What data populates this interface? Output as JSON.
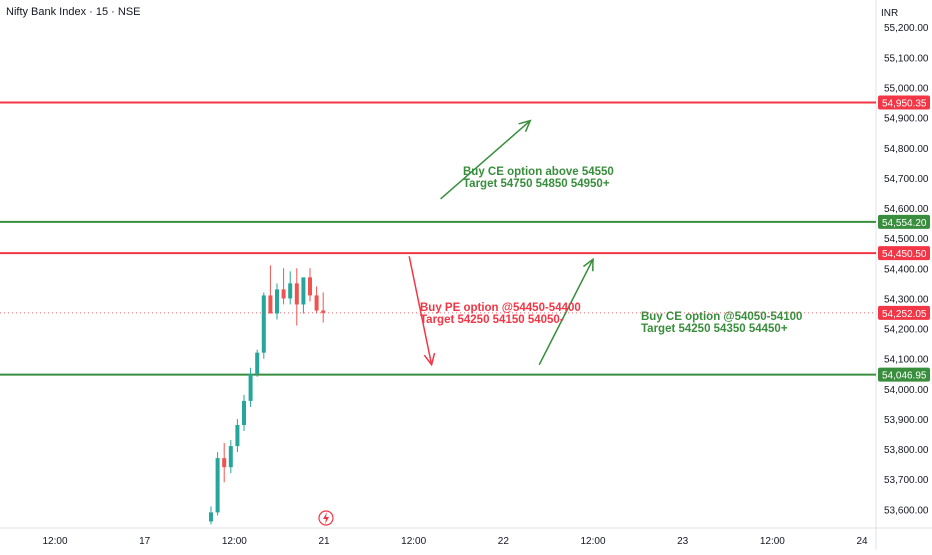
{
  "header": {
    "title": "Nifty Bank Index · 15 · NSE",
    "currency": "INR"
  },
  "chart_data": {
    "type": "candlestick",
    "ylim": [
      53550,
      55250
    ],
    "y_ticks": [
      53600,
      53700,
      53800,
      53900,
      54000,
      54100,
      54200,
      54300,
      54400,
      54500,
      54600,
      54700,
      54800,
      54900,
      55000,
      55100,
      55200
    ],
    "y_tick_labels": [
      "53,600.00",
      "53,700.00",
      "53,800.00",
      "53,900.00",
      "54,000.00",
      "54,100.00",
      "54,200.00",
      "54,300.00",
      "54,400.00",
      "54,500.00",
      "54,600.00",
      "54,700.00",
      "54,800.00",
      "54,900.00",
      "55,000.00",
      "55,100.00",
      "55,200.00"
    ],
    "x_ticks": [
      {
        "label": "12:00",
        "t": 0
      },
      {
        "label": "17",
        "t": 1
      },
      {
        "label": "12:00",
        "t": 2
      },
      {
        "label": "21",
        "t": 3
      },
      {
        "label": "12:00",
        "t": 4
      },
      {
        "label": "22",
        "t": 5
      },
      {
        "label": "12:00",
        "t": 6
      },
      {
        "label": "23",
        "t": 7
      },
      {
        "label": "12:00",
        "t": 8
      },
      {
        "label": "24",
        "t": 9
      }
    ],
    "candles": [
      {
        "o": 53560,
        "h": 53610,
        "l": 53550,
        "c": 53590
      },
      {
        "o": 53590,
        "h": 53790,
        "l": 53580,
        "c": 53770
      },
      {
        "o": 53770,
        "h": 53820,
        "l": 53690,
        "c": 53740
      },
      {
        "o": 53740,
        "h": 53830,
        "l": 53720,
        "c": 53810
      },
      {
        "o": 53810,
        "h": 53900,
        "l": 53790,
        "c": 53880
      },
      {
        "o": 53880,
        "h": 53980,
        "l": 53860,
        "c": 53960
      },
      {
        "o": 53960,
        "h": 54070,
        "l": 53940,
        "c": 54050
      },
      {
        "o": 54050,
        "h": 54130,
        "l": 54040,
        "c": 54120
      },
      {
        "o": 54120,
        "h": 54320,
        "l": 54100,
        "c": 54310
      },
      {
        "o": 54310,
        "h": 54410,
        "l": 54260,
        "c": 54250
      },
      {
        "o": 54250,
        "h": 54350,
        "l": 54230,
        "c": 54330
      },
      {
        "o": 54330,
        "h": 54400,
        "l": 54280,
        "c": 54300
      },
      {
        "o": 54300,
        "h": 54390,
        "l": 54280,
        "c": 54350
      },
      {
        "o": 54350,
        "h": 54400,
        "l": 54210,
        "c": 54280
      },
      {
        "o": 54280,
        "h": 54360,
        "l": 54250,
        "c": 54370
      },
      {
        "o": 54370,
        "h": 54400,
        "l": 54290,
        "c": 54310
      },
      {
        "o": 54310,
        "h": 54340,
        "l": 54250,
        "c": 54260
      },
      {
        "o": 54260,
        "h": 54320,
        "l": 54220,
        "c": 54252
      }
    ],
    "levels": [
      {
        "value": 54950.35,
        "label": "54,950.35",
        "color": "#f23645"
      },
      {
        "value": 54554.2,
        "label": "54,554.20",
        "color": "#388e3c"
      },
      {
        "value": 54450.5,
        "label": "54,450.50",
        "color": "#f23645"
      },
      {
        "value": 54046.95,
        "label": "54,046.95",
        "color": "#388e3c"
      }
    ],
    "last_price": {
      "value": 54252.05,
      "label": "54,252.05",
      "color": "#f23645"
    },
    "annotations": [
      {
        "lines": [
          "Buy CE option above 54550",
          "Target 54750 54850 54950+"
        ],
        "color": "#388e3c"
      },
      {
        "lines": [
          "Buy PE option @54450-54400",
          "Target 54250 54150 54050-"
        ],
        "color": "#f23645"
      },
      {
        "lines": [
          "Buy CE option @54050-54100",
          "Target 54250 54350 54450+"
        ],
        "color": "#388e3c"
      }
    ],
    "arrows": [
      {
        "color": "#388e3c",
        "from": [
          4.3,
          54630
        ],
        "to": [
          5.3,
          54890
        ]
      },
      {
        "color": "#f23645",
        "from": [
          3.95,
          54440
        ],
        "to": [
          4.2,
          54080
        ]
      },
      {
        "color": "#388e3c",
        "from": [
          5.4,
          54080
        ],
        "to": [
          6.0,
          54430
        ]
      }
    ],
    "colors": {
      "up": "#26a69a",
      "down": "#ef5350",
      "axis_text": "#131722",
      "grid": "#e0e3eb"
    }
  }
}
